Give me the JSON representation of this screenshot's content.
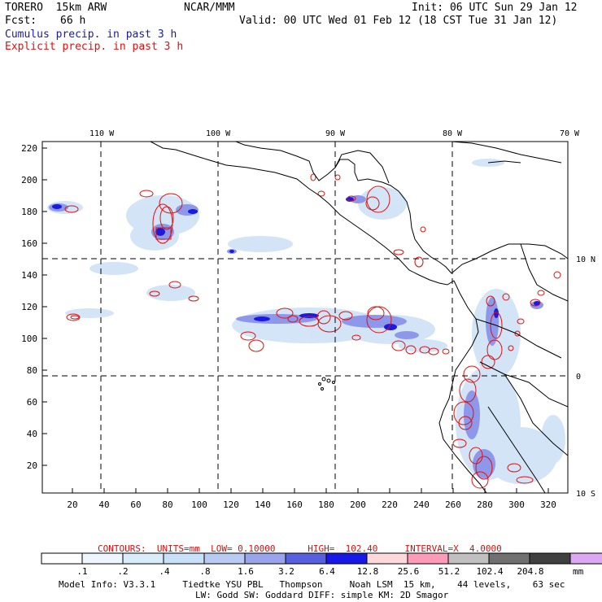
{
  "header": {
    "model": "TORERO  15km ARW",
    "org": "NCAR/MMM",
    "init": "Init: 06 UTC Sun 29 Jan 12",
    "fcst_label": "Fcst:",
    "fcst_value": "66 h",
    "valid": "Valid: 00 UTC Wed 01 Feb 12 (18 CST Tue 31 Jan 12)",
    "legend_cumulus": "Cumulus precip. in past 3 h",
    "legend_explicit": "Explicit precip. in past 3 h"
  },
  "colors": {
    "cumulus_text": "#1a1aa8",
    "explicit_text": "#e01010",
    "explicit_contour": "#e01010",
    "coast": "#000000"
  },
  "map": {
    "lon_labels": [
      "110 W",
      "100 W",
      "90 W",
      "80 W",
      "70 W"
    ],
    "lat_labels": [
      "10 N",
      "0",
      "10 S"
    ],
    "y_ticks": [
      "220",
      "200",
      "180",
      "160",
      "140",
      "120",
      "100",
      "80",
      "60",
      "40",
      "20"
    ],
    "x_ticks": [
      "20",
      "40",
      "60",
      "80",
      "100",
      "120",
      "140",
      "160",
      "180",
      "200",
      "220",
      "240",
      "260",
      "280",
      "300",
      "320"
    ]
  },
  "colorbar": {
    "labels": [
      ".1",
      ".2",
      ".4",
      ".8",
      "1.6",
      "3.2",
      "6.4",
      "12.8",
      "25.6",
      "51.2",
      "102.4",
      "204.8"
    ],
    "unit": "mm",
    "colors": [
      "#ffffff",
      "#eef6ff",
      "#d8ecfa",
      "#c8e0f8",
      "#b9cbf2",
      "#9aa4ec",
      "#5860e0",
      "#1818e8",
      "#ffd8dc",
      "#ff9ab8",
      "#c0c0c0",
      "#707070",
      "#404040",
      "#dca8f6"
    ]
  },
  "contours_text": "CONTOURS:  UNITS=mm  LOW= 0.10000      HIGH=  102.40     INTERVAL=X  4.0000",
  "footer": {
    "line1": "Model Info: V3.3.1     Tiedtke YSU PBL   Thompson     Noah LSM  15 km,    44 levels,    63 sec",
    "line2": "LW: Godd SW: Goddard DIFF: simple KM: 2D Smagor"
  }
}
